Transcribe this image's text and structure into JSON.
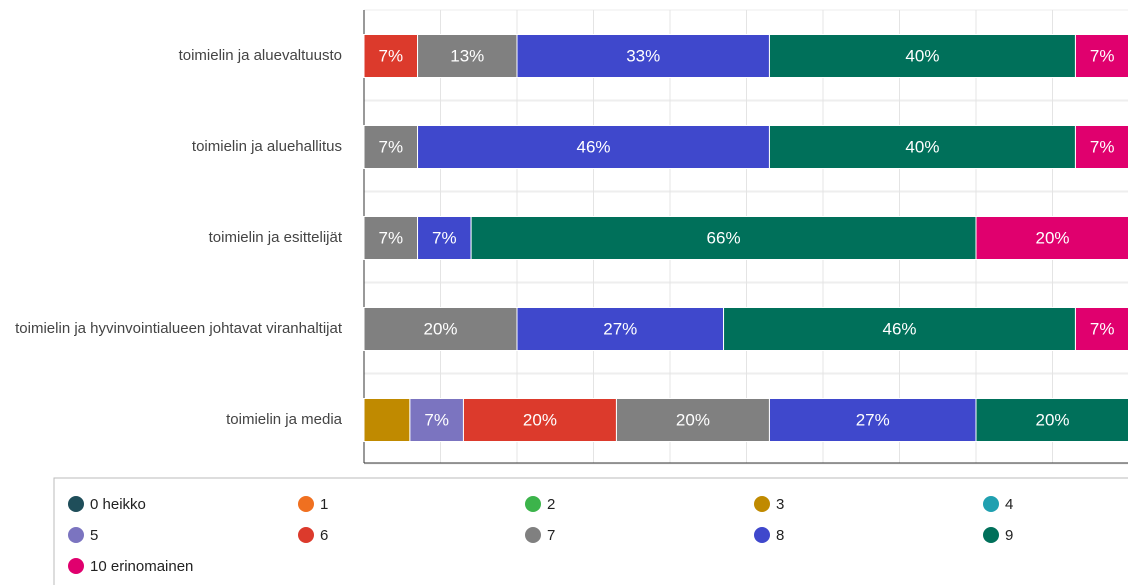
{
  "chart_data": {
    "type": "stacked-barh",
    "categories": [
      "toimielin ja aluevaltuusto",
      "toimielin ja aluehallitus",
      "toimielin ja esittelijät",
      "toimielin ja hyvinvointialueen johtavat viranhaltijat",
      "toimielin ja media"
    ],
    "xlim": [
      0,
      100
    ],
    "xticks": [
      0,
      10,
      20,
      30,
      40,
      50,
      60,
      70,
      80,
      90,
      100
    ],
    "grid": true,
    "series": [
      {
        "name": "0 heikko",
        "color": "#1f4e5a",
        "values": [
          null,
          null,
          null,
          null,
          null
        ]
      },
      {
        "name": "1",
        "color": "#f07020",
        "values": [
          null,
          null,
          null,
          null,
          null
        ]
      },
      {
        "name": "2",
        "color": "#3cb44b",
        "values": [
          null,
          null,
          null,
          null,
          null
        ]
      },
      {
        "name": "3",
        "color": "#c08a00",
        "values": [
          null,
          null,
          null,
          null,
          6
        ],
        "value_labels": [
          null,
          null,
          null,
          null,
          null
        ]
      },
      {
        "name": "4",
        "color": "#20a0b0",
        "values": [
          null,
          null,
          null,
          null,
          null
        ]
      },
      {
        "name": "5",
        "color": "#7b74c0",
        "values": [
          null,
          null,
          null,
          null,
          7
        ],
        "value_labels": [
          null,
          null,
          null,
          null,
          "7%"
        ]
      },
      {
        "name": "6",
        "color": "#dc3a2c",
        "values": [
          7,
          null,
          null,
          null,
          20
        ],
        "value_labels": [
          "7%",
          null,
          null,
          null,
          "20%"
        ]
      },
      {
        "name": "7",
        "color": "#808080",
        "values": [
          13,
          7,
          7,
          20,
          20
        ],
        "value_labels": [
          "13%",
          "7%",
          "7%",
          "20%",
          "20%"
        ]
      },
      {
        "name": "8",
        "color": "#3f48cc",
        "values": [
          33,
          46,
          7,
          27,
          27
        ],
        "value_labels": [
          "33%",
          "46%",
          "7%",
          "27%",
          "27%"
        ]
      },
      {
        "name": "9",
        "color": "#00705a",
        "values": [
          40,
          40,
          66,
          46,
          20
        ],
        "value_labels": [
          "40%",
          "40%",
          "66%",
          "46%",
          "20%"
        ]
      },
      {
        "name": "10 erinomainen",
        "color": "#e0006e",
        "values": [
          7,
          7,
          20,
          7,
          null
        ],
        "value_labels": [
          "7%",
          "7%",
          "20%",
          "7%",
          null
        ]
      }
    ]
  }
}
